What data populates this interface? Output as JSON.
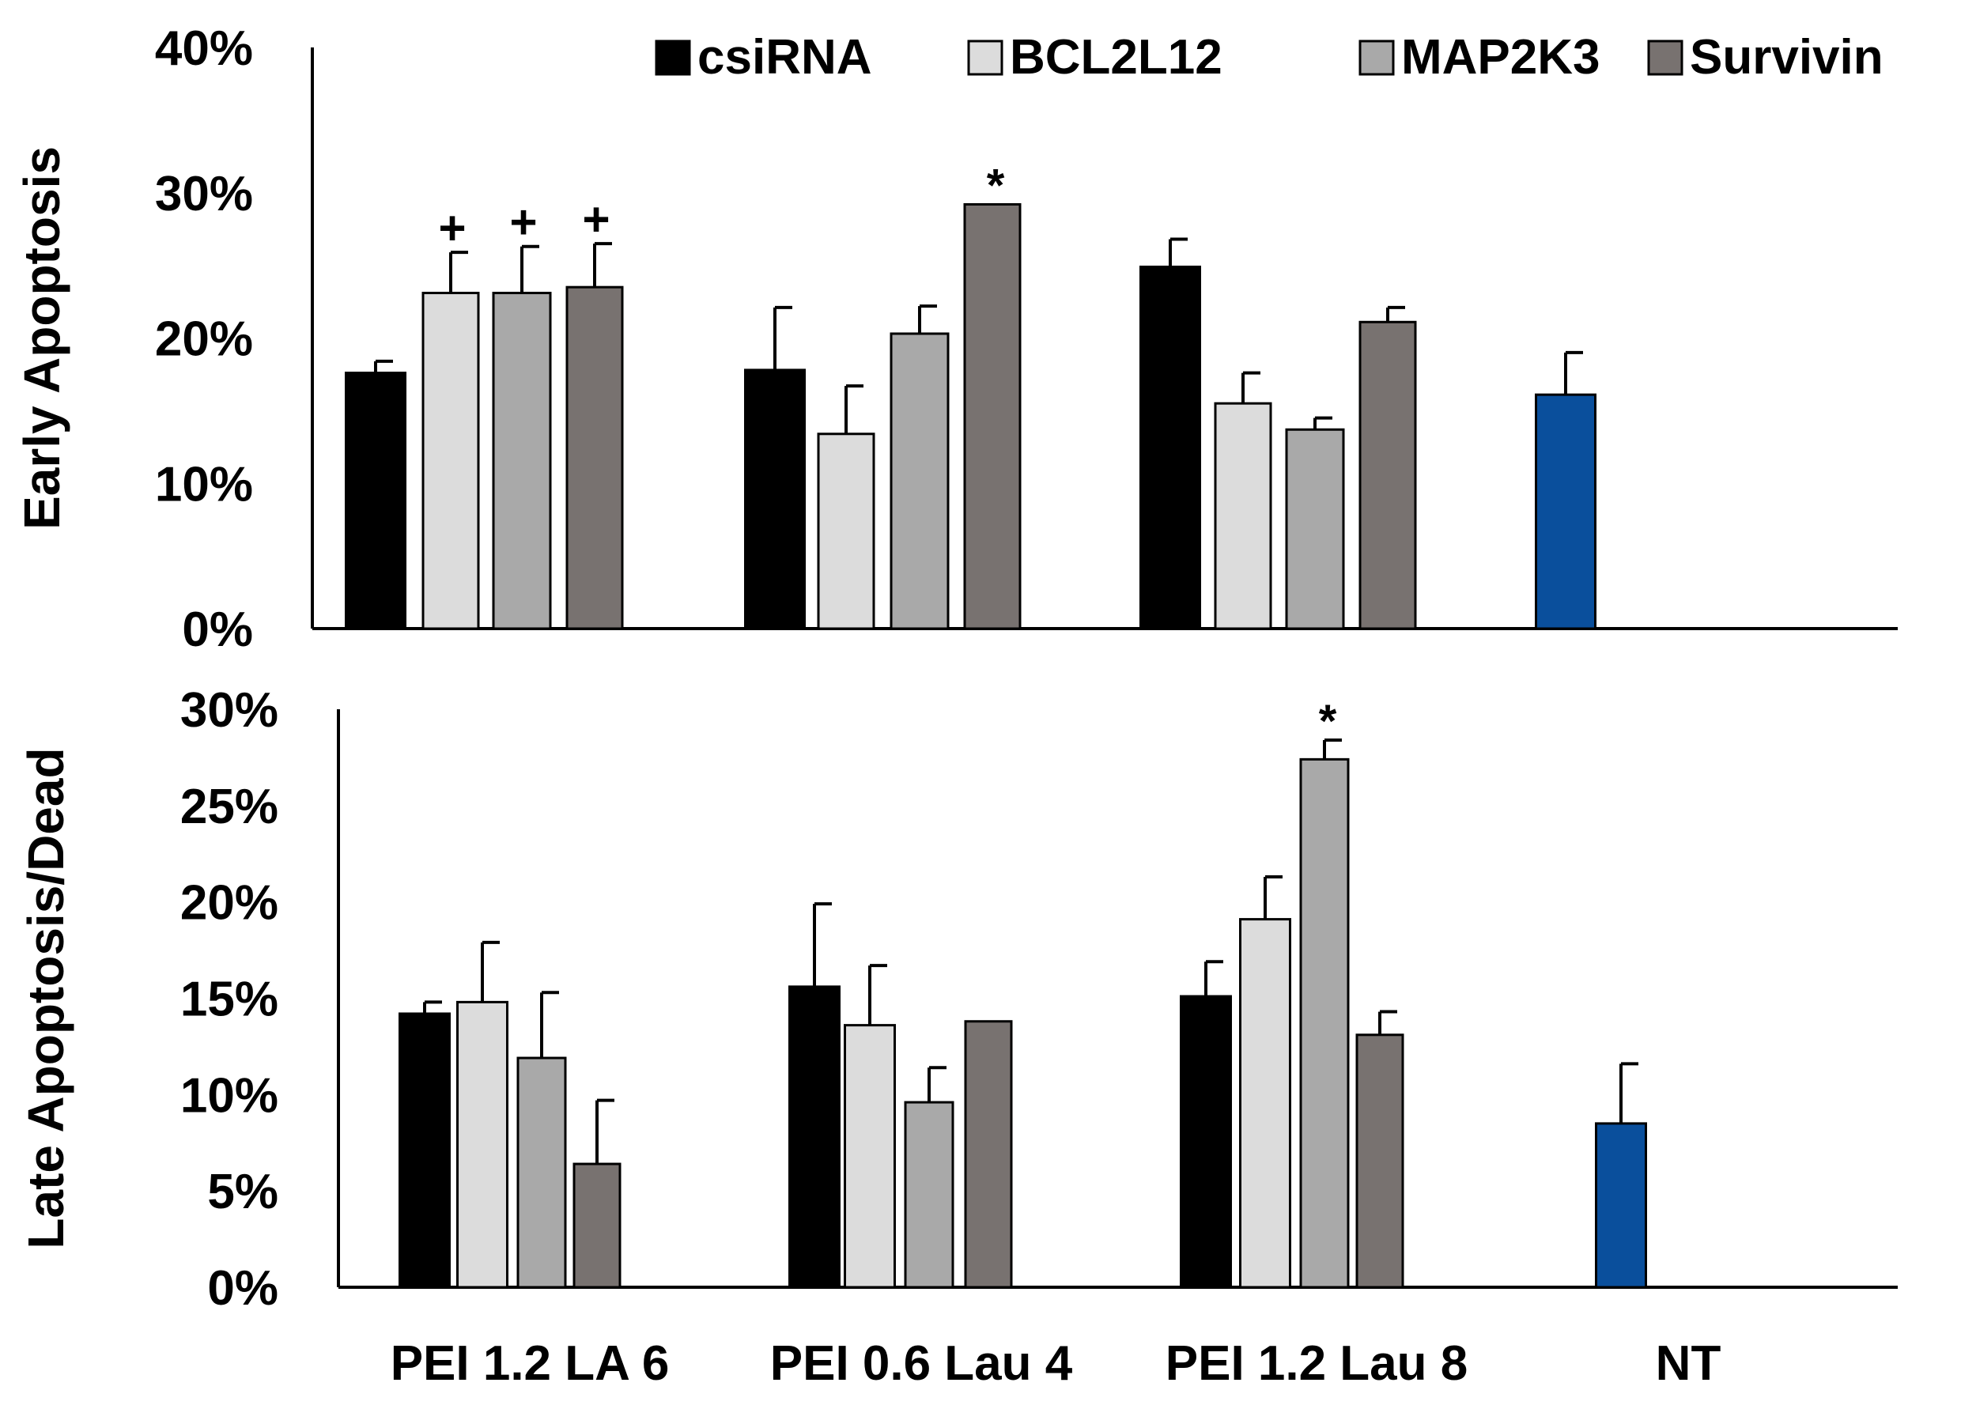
{
  "colors": {
    "csiRNA": "#000000",
    "BCL2L12": "#dcdcdc",
    "MAP2K3": "#a9a9a9",
    "Survivin": "#787270",
    "NT": "#0a4f9c",
    "bar_stroke": "#000000"
  },
  "legend": {
    "items": [
      {
        "label": "csiRNA",
        "color": "#000000"
      },
      {
        "label": "BCL2L12",
        "color": "#dcdcdc"
      },
      {
        "label": "MAP2K3",
        "color": "#a9a9a9"
      },
      {
        "label": "Survivin",
        "color": "#787270"
      }
    ]
  },
  "chart_data": [
    {
      "type": "bar",
      "ylabel": "Early Apoptosis",
      "ylim": [
        0,
        40
      ],
      "yticks": [
        0,
        10,
        20,
        30,
        40
      ],
      "ytick_labels": [
        "0%",
        "10%",
        "20%",
        "30%",
        "40%"
      ],
      "groups": [
        "PEI 1.2 LA 6",
        "PEI 0.6 Lau 4",
        "PEI 1.2 Lau 8",
        "NT"
      ],
      "series": [
        {
          "name": "csiRNA",
          "values": [
            17.6,
            17.8,
            24.9,
            null
          ],
          "errors": [
            0.8,
            4.3,
            1.9,
            null
          ],
          "marks": [
            "",
            "",
            "",
            ""
          ]
        },
        {
          "name": "BCL2L12",
          "values": [
            23.1,
            13.4,
            15.5,
            null
          ],
          "errors": [
            2.8,
            3.3,
            2.1,
            null
          ],
          "marks": [
            "+",
            "",
            "",
            ""
          ]
        },
        {
          "name": "MAP2K3",
          "values": [
            23.1,
            20.3,
            13.7,
            null
          ],
          "errors": [
            3.2,
            1.9,
            0.8,
            null
          ],
          "marks": [
            "+",
            "",
            "",
            ""
          ]
        },
        {
          "name": "Survivin",
          "values": [
            23.5,
            29.2,
            21.1,
            null
          ],
          "errors": [
            3.0,
            0,
            1.0,
            null
          ],
          "marks": [
            "+",
            "*",
            "",
            ""
          ]
        },
        {
          "name": "NT",
          "values": [
            null,
            null,
            null,
            16.1
          ],
          "errors": [
            null,
            null,
            null,
            2.9
          ],
          "marks": [
            "",
            "",
            "",
            ""
          ]
        }
      ]
    },
    {
      "type": "bar",
      "ylabel": "Late Apoptosis/Dead",
      "ylim": [
        0,
        30
      ],
      "yticks": [
        0,
        5,
        10,
        15,
        20,
        25,
        30
      ],
      "ytick_labels": [
        "0%",
        "5%",
        "10%",
        "15%",
        "20%",
        "25%",
        "30%"
      ],
      "groups": [
        "PEI 1.2 LA 6",
        "PEI 0.6 Lau 4",
        "PEI 1.2 Lau 8",
        "NT"
      ],
      "xtick_labels": [
        "PEI 1.2 LA 6",
        "PEI 0.6 Lau 4",
        "PEI 1.2 Lau 8",
        "NT"
      ],
      "series": [
        {
          "name": "csiRNA",
          "values": [
            14.2,
            15.6,
            15.1,
            null
          ],
          "errors": [
            0.6,
            4.3,
            1.8,
            null
          ],
          "marks": [
            "",
            "",
            "",
            ""
          ]
        },
        {
          "name": "BCL2L12",
          "values": [
            14.8,
            13.6,
            19.1,
            null
          ],
          "errors": [
            3.1,
            3.1,
            2.2,
            null
          ],
          "marks": [
            "",
            "",
            "",
            ""
          ]
        },
        {
          "name": "MAP2K3",
          "values": [
            11.9,
            9.6,
            27.4,
            null
          ],
          "errors": [
            3.4,
            1.8,
            1.0,
            null
          ],
          "marks": [
            "",
            "",
            "*",
            ""
          ]
        },
        {
          "name": "Survivin",
          "values": [
            6.4,
            13.8,
            13.1,
            null
          ],
          "errors": [
            3.3,
            0,
            1.2,
            null
          ],
          "marks": [
            "",
            "",
            "",
            ""
          ]
        },
        {
          "name": "NT",
          "values": [
            null,
            null,
            null,
            8.5
          ],
          "errors": [
            null,
            null,
            null,
            3.1
          ],
          "marks": [
            "",
            "",
            "",
            ""
          ]
        }
      ]
    }
  ]
}
